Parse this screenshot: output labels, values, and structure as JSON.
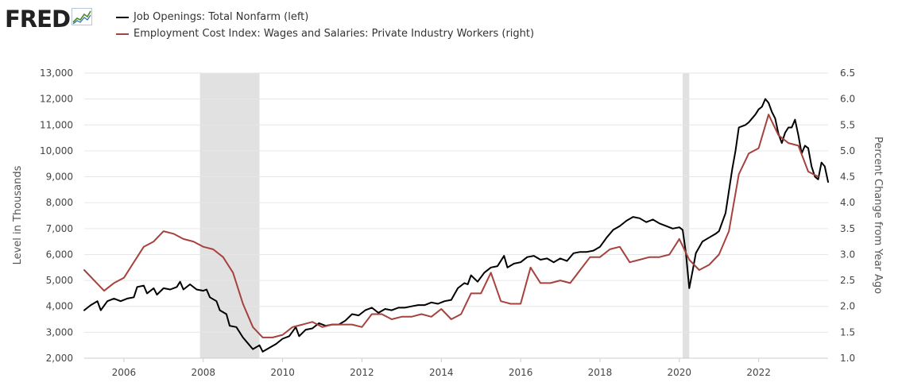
{
  "brand": {
    "logo_text": "FRED",
    "logo_icon": "fred-chart-icon"
  },
  "chart_data": {
    "type": "line",
    "title": "",
    "x_axis": {
      "type": "time",
      "range": [
        "2005-01",
        "2023-10"
      ],
      "ticks": [
        "2006",
        "2008",
        "2010",
        "2012",
        "2014",
        "2016",
        "2018",
        "2020",
        "2022"
      ]
    },
    "y_left": {
      "label": "Level in Thousands",
      "range": [
        2000,
        13000
      ],
      "ticks": [
        "2,000",
        "3,000",
        "4,000",
        "5,000",
        "6,000",
        "7,000",
        "8,000",
        "9,000",
        "10,000",
        "11,000",
        "12,000",
        "13,000"
      ]
    },
    "y_right": {
      "label": "Percent Change from Year Ago",
      "range": [
        1.0,
        6.5
      ],
      "ticks": [
        "1.0",
        "1.5",
        "2.0",
        "2.5",
        "3.0",
        "3.5",
        "4.0",
        "4.5",
        "5.0",
        "5.5",
        "6.0",
        "6.5"
      ]
    },
    "grid": true,
    "legend_position": "top-left",
    "recessions": [
      {
        "start": "2007-12",
        "end": "2009-06"
      },
      {
        "start": "2020-02",
        "end": "2020-04"
      }
    ],
    "series": [
      {
        "name": "Job Openings: Total Nonfarm (left)",
        "axis": "left",
        "color": "#000000",
        "points": [
          [
            "2005-01",
            3850
          ],
          [
            "2005-03",
            4050
          ],
          [
            "2005-05",
            4200
          ],
          [
            "2005-06",
            3850
          ],
          [
            "2005-08",
            4200
          ],
          [
            "2005-10",
            4300
          ],
          [
            "2005-12",
            4200
          ],
          [
            "2006-02",
            4300
          ],
          [
            "2006-04",
            4350
          ],
          [
            "2006-05",
            4750
          ],
          [
            "2006-07",
            4800
          ],
          [
            "2006-08",
            4500
          ],
          [
            "2006-10",
            4700
          ],
          [
            "2006-11",
            4450
          ],
          [
            "2007-01",
            4700
          ],
          [
            "2007-03",
            4650
          ],
          [
            "2007-05",
            4750
          ],
          [
            "2007-06",
            4950
          ],
          [
            "2007-07",
            4650
          ],
          [
            "2007-09",
            4850
          ],
          [
            "2007-11",
            4650
          ],
          [
            "2008-01",
            4600
          ],
          [
            "2008-02",
            4650
          ],
          [
            "2008-03",
            4350
          ],
          [
            "2008-05",
            4200
          ],
          [
            "2008-06",
            3850
          ],
          [
            "2008-08",
            3700
          ],
          [
            "2008-09",
            3250
          ],
          [
            "2008-11",
            3200
          ],
          [
            "2009-01",
            2800
          ],
          [
            "2009-03",
            2500
          ],
          [
            "2009-04",
            2350
          ],
          [
            "2009-06",
            2500
          ],
          [
            "2009-07",
            2250
          ],
          [
            "2009-09",
            2400
          ],
          [
            "2009-11",
            2550
          ],
          [
            "2010-01",
            2750
          ],
          [
            "2010-03",
            2850
          ],
          [
            "2010-05",
            3200
          ],
          [
            "2010-06",
            2850
          ],
          [
            "2010-08",
            3100
          ],
          [
            "2010-10",
            3150
          ],
          [
            "2010-12",
            3350
          ],
          [
            "2011-02",
            3250
          ],
          [
            "2011-04",
            3300
          ],
          [
            "2011-06",
            3300
          ],
          [
            "2011-08",
            3450
          ],
          [
            "2011-10",
            3700
          ],
          [
            "2011-12",
            3650
          ],
          [
            "2012-02",
            3850
          ],
          [
            "2012-04",
            3950
          ],
          [
            "2012-06",
            3750
          ],
          [
            "2012-08",
            3900
          ],
          [
            "2012-10",
            3850
          ],
          [
            "2012-12",
            3950
          ],
          [
            "2013-02",
            3950
          ],
          [
            "2013-04",
            4000
          ],
          [
            "2013-06",
            4050
          ],
          [
            "2013-08",
            4050
          ],
          [
            "2013-10",
            4150
          ],
          [
            "2013-12",
            4100
          ],
          [
            "2014-02",
            4200
          ],
          [
            "2014-04",
            4250
          ],
          [
            "2014-06",
            4700
          ],
          [
            "2014-08",
            4900
          ],
          [
            "2014-09",
            4850
          ],
          [
            "2014-10",
            5200
          ],
          [
            "2014-12",
            4950
          ],
          [
            "2015-02",
            5300
          ],
          [
            "2015-04",
            5500
          ],
          [
            "2015-06",
            5550
          ],
          [
            "2015-08",
            5950
          ],
          [
            "2015-09",
            5500
          ],
          [
            "2015-11",
            5650
          ],
          [
            "2016-01",
            5700
          ],
          [
            "2016-03",
            5900
          ],
          [
            "2016-05",
            5950
          ],
          [
            "2016-07",
            5800
          ],
          [
            "2016-09",
            5850
          ],
          [
            "2016-11",
            5700
          ],
          [
            "2017-01",
            5850
          ],
          [
            "2017-03",
            5750
          ],
          [
            "2017-05",
            6050
          ],
          [
            "2017-07",
            6100
          ],
          [
            "2017-09",
            6100
          ],
          [
            "2017-11",
            6150
          ],
          [
            "2018-01",
            6300
          ],
          [
            "2018-03",
            6650
          ],
          [
            "2018-05",
            6950
          ],
          [
            "2018-07",
            7100
          ],
          [
            "2018-09",
            7300
          ],
          [
            "2018-11",
            7450
          ],
          [
            "2019-01",
            7400
          ],
          [
            "2019-03",
            7250
          ],
          [
            "2019-05",
            7350
          ],
          [
            "2019-07",
            7200
          ],
          [
            "2019-09",
            7100
          ],
          [
            "2019-11",
            7000
          ],
          [
            "2020-01",
            7050
          ],
          [
            "2020-02",
            6950
          ],
          [
            "2020-03",
            6050
          ],
          [
            "2020-04",
            4700
          ],
          [
            "2020-05",
            5350
          ],
          [
            "2020-06",
            6050
          ],
          [
            "2020-08",
            6500
          ],
          [
            "2020-10",
            6650
          ],
          [
            "2020-12",
            6800
          ],
          [
            "2021-01",
            6900
          ],
          [
            "2021-03",
            7600
          ],
          [
            "2021-05",
            9300
          ],
          [
            "2021-06",
            10000
          ],
          [
            "2021-07",
            10900
          ],
          [
            "2021-09",
            11000
          ],
          [
            "2021-10",
            11100
          ],
          [
            "2021-12",
            11400
          ],
          [
            "2022-01",
            11600
          ],
          [
            "2022-02",
            11700
          ],
          [
            "2022-03",
            12000
          ],
          [
            "2022-04",
            11850
          ],
          [
            "2022-05",
            11500
          ],
          [
            "2022-06",
            11250
          ],
          [
            "2022-07",
            10650
          ],
          [
            "2022-08",
            10300
          ],
          [
            "2022-09",
            10700
          ],
          [
            "2022-10",
            10900
          ],
          [
            "2022-11",
            10900
          ],
          [
            "2022-12",
            11200
          ],
          [
            "2023-01",
            10600
          ],
          [
            "2023-02",
            9900
          ],
          [
            "2023-03",
            10200
          ],
          [
            "2023-04",
            10100
          ],
          [
            "2023-05",
            9400
          ],
          [
            "2023-06",
            9000
          ],
          [
            "2023-07",
            8900
          ],
          [
            "2023-08",
            9550
          ],
          [
            "2023-09",
            9400
          ],
          [
            "2023-10",
            8800
          ]
        ]
      },
      {
        "name": "Employment Cost Index: Wages and Salaries: Private Industry Workers (right)",
        "axis": "right",
        "color": "#a6423e",
        "points": [
          [
            "2005-01",
            2.7
          ],
          [
            "2005-04",
            2.5
          ],
          [
            "2005-07",
            2.3
          ],
          [
            "2005-10",
            2.45
          ],
          [
            "2006-01",
            2.55
          ],
          [
            "2006-04",
            2.85
          ],
          [
            "2006-07",
            3.15
          ],
          [
            "2006-10",
            3.25
          ],
          [
            "2007-01",
            3.45
          ],
          [
            "2007-04",
            3.4
          ],
          [
            "2007-07",
            3.3
          ],
          [
            "2007-10",
            3.25
          ],
          [
            "2008-01",
            3.15
          ],
          [
            "2008-04",
            3.1
          ],
          [
            "2008-07",
            2.95
          ],
          [
            "2008-10",
            2.65
          ],
          [
            "2009-01",
            2.05
          ],
          [
            "2009-04",
            1.6
          ],
          [
            "2009-07",
            1.4
          ],
          [
            "2009-10",
            1.4
          ],
          [
            "2010-01",
            1.45
          ],
          [
            "2010-04",
            1.6
          ],
          [
            "2010-07",
            1.65
          ],
          [
            "2010-10",
            1.7
          ],
          [
            "2011-01",
            1.6
          ],
          [
            "2011-04",
            1.65
          ],
          [
            "2011-07",
            1.65
          ],
          [
            "2011-10",
            1.65
          ],
          [
            "2012-01",
            1.6
          ],
          [
            "2012-04",
            1.85
          ],
          [
            "2012-07",
            1.85
          ],
          [
            "2012-10",
            1.75
          ],
          [
            "2013-01",
            1.8
          ],
          [
            "2013-04",
            1.8
          ],
          [
            "2013-07",
            1.85
          ],
          [
            "2013-10",
            1.8
          ],
          [
            "2014-01",
            1.95
          ],
          [
            "2014-04",
            1.75
          ],
          [
            "2014-07",
            1.85
          ],
          [
            "2014-10",
            2.25
          ],
          [
            "2015-01",
            2.25
          ],
          [
            "2015-04",
            2.65
          ],
          [
            "2015-07",
            2.1
          ],
          [
            "2015-10",
            2.05
          ],
          [
            "2016-01",
            2.05
          ],
          [
            "2016-04",
            2.75
          ],
          [
            "2016-07",
            2.45
          ],
          [
            "2016-10",
            2.45
          ],
          [
            "2017-01",
            2.5
          ],
          [
            "2017-04",
            2.45
          ],
          [
            "2017-07",
            2.7
          ],
          [
            "2017-10",
            2.95
          ],
          [
            "2018-01",
            2.95
          ],
          [
            "2018-04",
            3.1
          ],
          [
            "2018-07",
            3.15
          ],
          [
            "2018-10",
            2.85
          ],
          [
            "2019-01",
            2.9
          ],
          [
            "2019-04",
            2.95
          ],
          [
            "2019-07",
            2.95
          ],
          [
            "2019-10",
            3.0
          ],
          [
            "2020-01",
            3.3
          ],
          [
            "2020-04",
            2.9
          ],
          [
            "2020-07",
            2.7
          ],
          [
            "2020-10",
            2.8
          ],
          [
            "2021-01",
            3.0
          ],
          [
            "2021-04",
            3.45
          ],
          [
            "2021-07",
            4.55
          ],
          [
            "2021-10",
            4.95
          ],
          [
            "2022-01",
            5.05
          ],
          [
            "2022-04",
            5.7
          ],
          [
            "2022-07",
            5.3
          ],
          [
            "2022-10",
            5.15
          ],
          [
            "2023-01",
            5.1
          ],
          [
            "2023-04",
            4.6
          ],
          [
            "2023-07",
            4.5
          ]
        ]
      }
    ]
  }
}
